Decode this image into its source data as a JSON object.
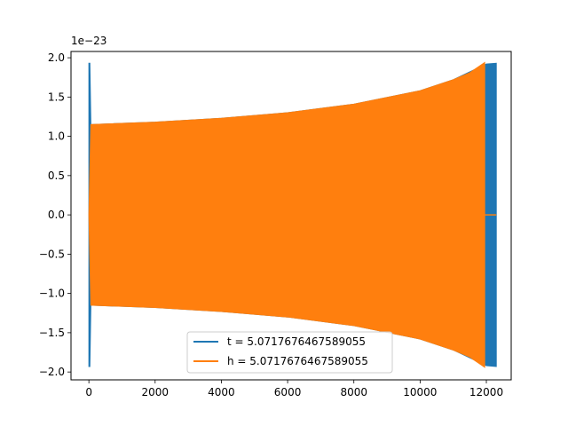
{
  "chart_data": {
    "type": "line",
    "title": "",
    "xlabel": "",
    "ylabel": "",
    "offset_text": "1e−23",
    "xlim": [
      -540,
      12750
    ],
    "ylim": [
      -2.1,
      2.08
    ],
    "xticks": [
      0,
      2000,
      4000,
      6000,
      8000,
      10000,
      12000
    ],
    "xtick_labels": [
      "0",
      "2000",
      "4000",
      "6000",
      "8000",
      "10000",
      "12000"
    ],
    "yticks": [
      2.0,
      1.5,
      1.0,
      0.5,
      0.0,
      -0.5,
      -1.0,
      -1.5,
      -2.0
    ],
    "ytick_labels": [
      "2.0",
      "1.5",
      "1.0",
      "0.5",
      "0.0",
      "−0.5",
      "−1.0",
      "−1.5",
      "−2.0"
    ],
    "grid": false,
    "legend_position": "lower center",
    "series": [
      {
        "name": "t = 5.0717676467589055",
        "color": "#1f77b4",
        "envelope": {
          "x": [
            0,
            30,
            60,
            2000,
            4000,
            6000,
            8000,
            10000,
            11000,
            12000,
            12300
          ],
          "upper": [
            1.93,
            1.93,
            1.15,
            1.18,
            1.23,
            1.3,
            1.41,
            1.58,
            1.72,
            1.92,
            1.93
          ],
          "lower": [
            -1.93,
            -1.93,
            -1.15,
            -1.18,
            -1.23,
            -1.3,
            -1.41,
            -1.58,
            -1.72,
            -1.92,
            -1.93
          ]
        }
      },
      {
        "name": "h = 5.0717676467589055",
        "color": "#ff7f0e",
        "envelope": {
          "x": [
            0,
            60,
            2000,
            4000,
            6000,
            8000,
            10000,
            11000,
            11500,
            11950
          ],
          "upper": [
            0,
            1.15,
            1.18,
            1.23,
            1.3,
            1.41,
            1.58,
            1.72,
            1.81,
            1.94
          ],
          "lower": [
            0,
            -1.15,
            -1.18,
            -1.23,
            -1.3,
            -1.41,
            -1.58,
            -1.72,
            -1.81,
            -1.94
          ]
        },
        "tail": {
          "x": [
            11950,
            12300
          ],
          "y": [
            0,
            0
          ]
        }
      }
    ]
  }
}
